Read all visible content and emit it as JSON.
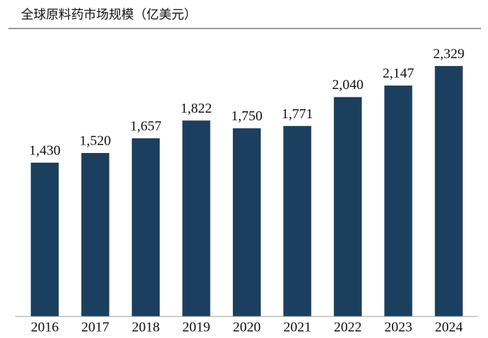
{
  "chart_data": {
    "type": "bar",
    "title": "全球原料药市场规模（亿美元）",
    "categories": [
      "2016",
      "2017",
      "2018",
      "2019",
      "2020",
      "2021",
      "2022",
      "2023",
      "2024"
    ],
    "values": [
      1430,
      1520,
      1657,
      1822,
      1750,
      1771,
      2040,
      2147,
      2329
    ],
    "value_labels": [
      "1,430",
      "1,520",
      "1,657",
      "1,822",
      "1,750",
      "1,771",
      "2,040",
      "2,147",
      "2,329"
    ],
    "color": "#1b3f5f",
    "ylim": [
      0,
      2600
    ]
  }
}
